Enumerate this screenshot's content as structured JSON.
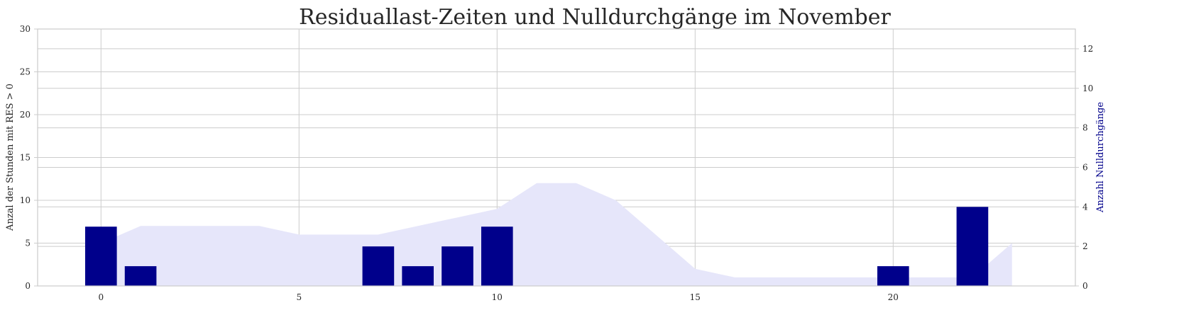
{
  "chart_data": {
    "type": "bar",
    "title": "Residuallast-Zeiten und Nulldurchgänge im November",
    "x": [
      0,
      1,
      2,
      3,
      4,
      5,
      6,
      7,
      8,
      9,
      10,
      11,
      12,
      13,
      14,
      15,
      16,
      17,
      18,
      19,
      20,
      21,
      22,
      23
    ],
    "xlim": [
      -1.6,
      24.6
    ],
    "xticks": [
      0,
      5,
      10,
      15,
      20
    ],
    "left_axis": {
      "label": "Anzal der Stunden mit RES > 0",
      "ylim": [
        0,
        30
      ],
      "ticks": [
        0,
        5,
        10,
        15,
        20,
        25,
        30
      ]
    },
    "right_axis": {
      "label": "Anzahl Nulldurchgänge",
      "ylim": [
        0,
        13
      ],
      "ticks": [
        0,
        2,
        4,
        6,
        8,
        10,
        12
      ]
    },
    "series": [
      {
        "kind": "area",
        "axis": "left",
        "color": "#e6e6fa",
        "x": [
          0,
          1,
          2,
          3,
          4,
          5,
          6,
          7,
          8,
          9,
          10,
          11,
          12,
          13,
          14,
          15,
          16,
          17,
          18,
          19,
          20,
          21,
          22,
          23
        ],
        "values": [
          5,
          7,
          7,
          7,
          7,
          6,
          6,
          6,
          7,
          8,
          9,
          12,
          12,
          10,
          6,
          2,
          1,
          1,
          1,
          1,
          1,
          1,
          1,
          5
        ]
      },
      {
        "kind": "bar",
        "axis": "right",
        "color": "#00008b",
        "x": [
          0,
          1,
          7,
          8,
          9,
          10,
          20,
          22
        ],
        "values": [
          3,
          1,
          2,
          1,
          2,
          3,
          1,
          4
        ]
      }
    ],
    "grid": true
  }
}
